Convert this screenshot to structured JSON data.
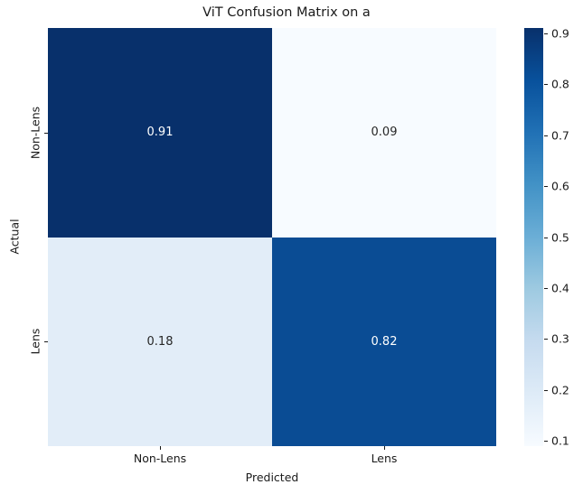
{
  "figure": {
    "background": "#ffffff",
    "text_color": "#1a1a1a"
  },
  "chart_data": {
    "type": "heatmap",
    "title": "ViT Confusion Matrix on a",
    "xlabel": "Predicted",
    "ylabel": "Actual",
    "x_categories": [
      "Non-Lens",
      "Lens"
    ],
    "y_categories": [
      "Non-Lens",
      "Lens"
    ],
    "matrix": [
      [
        0.91,
        0.09
      ],
      [
        0.18,
        0.82
      ]
    ],
    "cell_labels": [
      [
        "0.91",
        "0.09"
      ],
      [
        "0.18",
        "0.82"
      ]
    ],
    "cell_colors": [
      [
        "#08306b",
        "#f7fbff"
      ],
      [
        "#e2edf8",
        "#0a4c94"
      ]
    ],
    "cell_text_colors": [
      [
        "#ffffff",
        "#262626"
      ],
      [
        "#262626",
        "#ffffff"
      ]
    ],
    "colormap": "Blues",
    "colormap_stops": [
      "#f7fbff",
      "#deebf7",
      "#c6dbef",
      "#9ecae1",
      "#6baed6",
      "#4292c6",
      "#2171b5",
      "#08519c",
      "#08306b"
    ],
    "colorbar": {
      "position": "right",
      "vmin": 0.09,
      "vmax": 0.91,
      "ticks": [
        0.9,
        0.8,
        0.7,
        0.6,
        0.5,
        0.4,
        0.3,
        0.2,
        0.1
      ],
      "tick_labels": [
        "0.9",
        "0.8",
        "0.7",
        "0.6",
        "0.5",
        "0.4",
        "0.3",
        "0.2",
        "0.1"
      ]
    },
    "grid": false
  }
}
